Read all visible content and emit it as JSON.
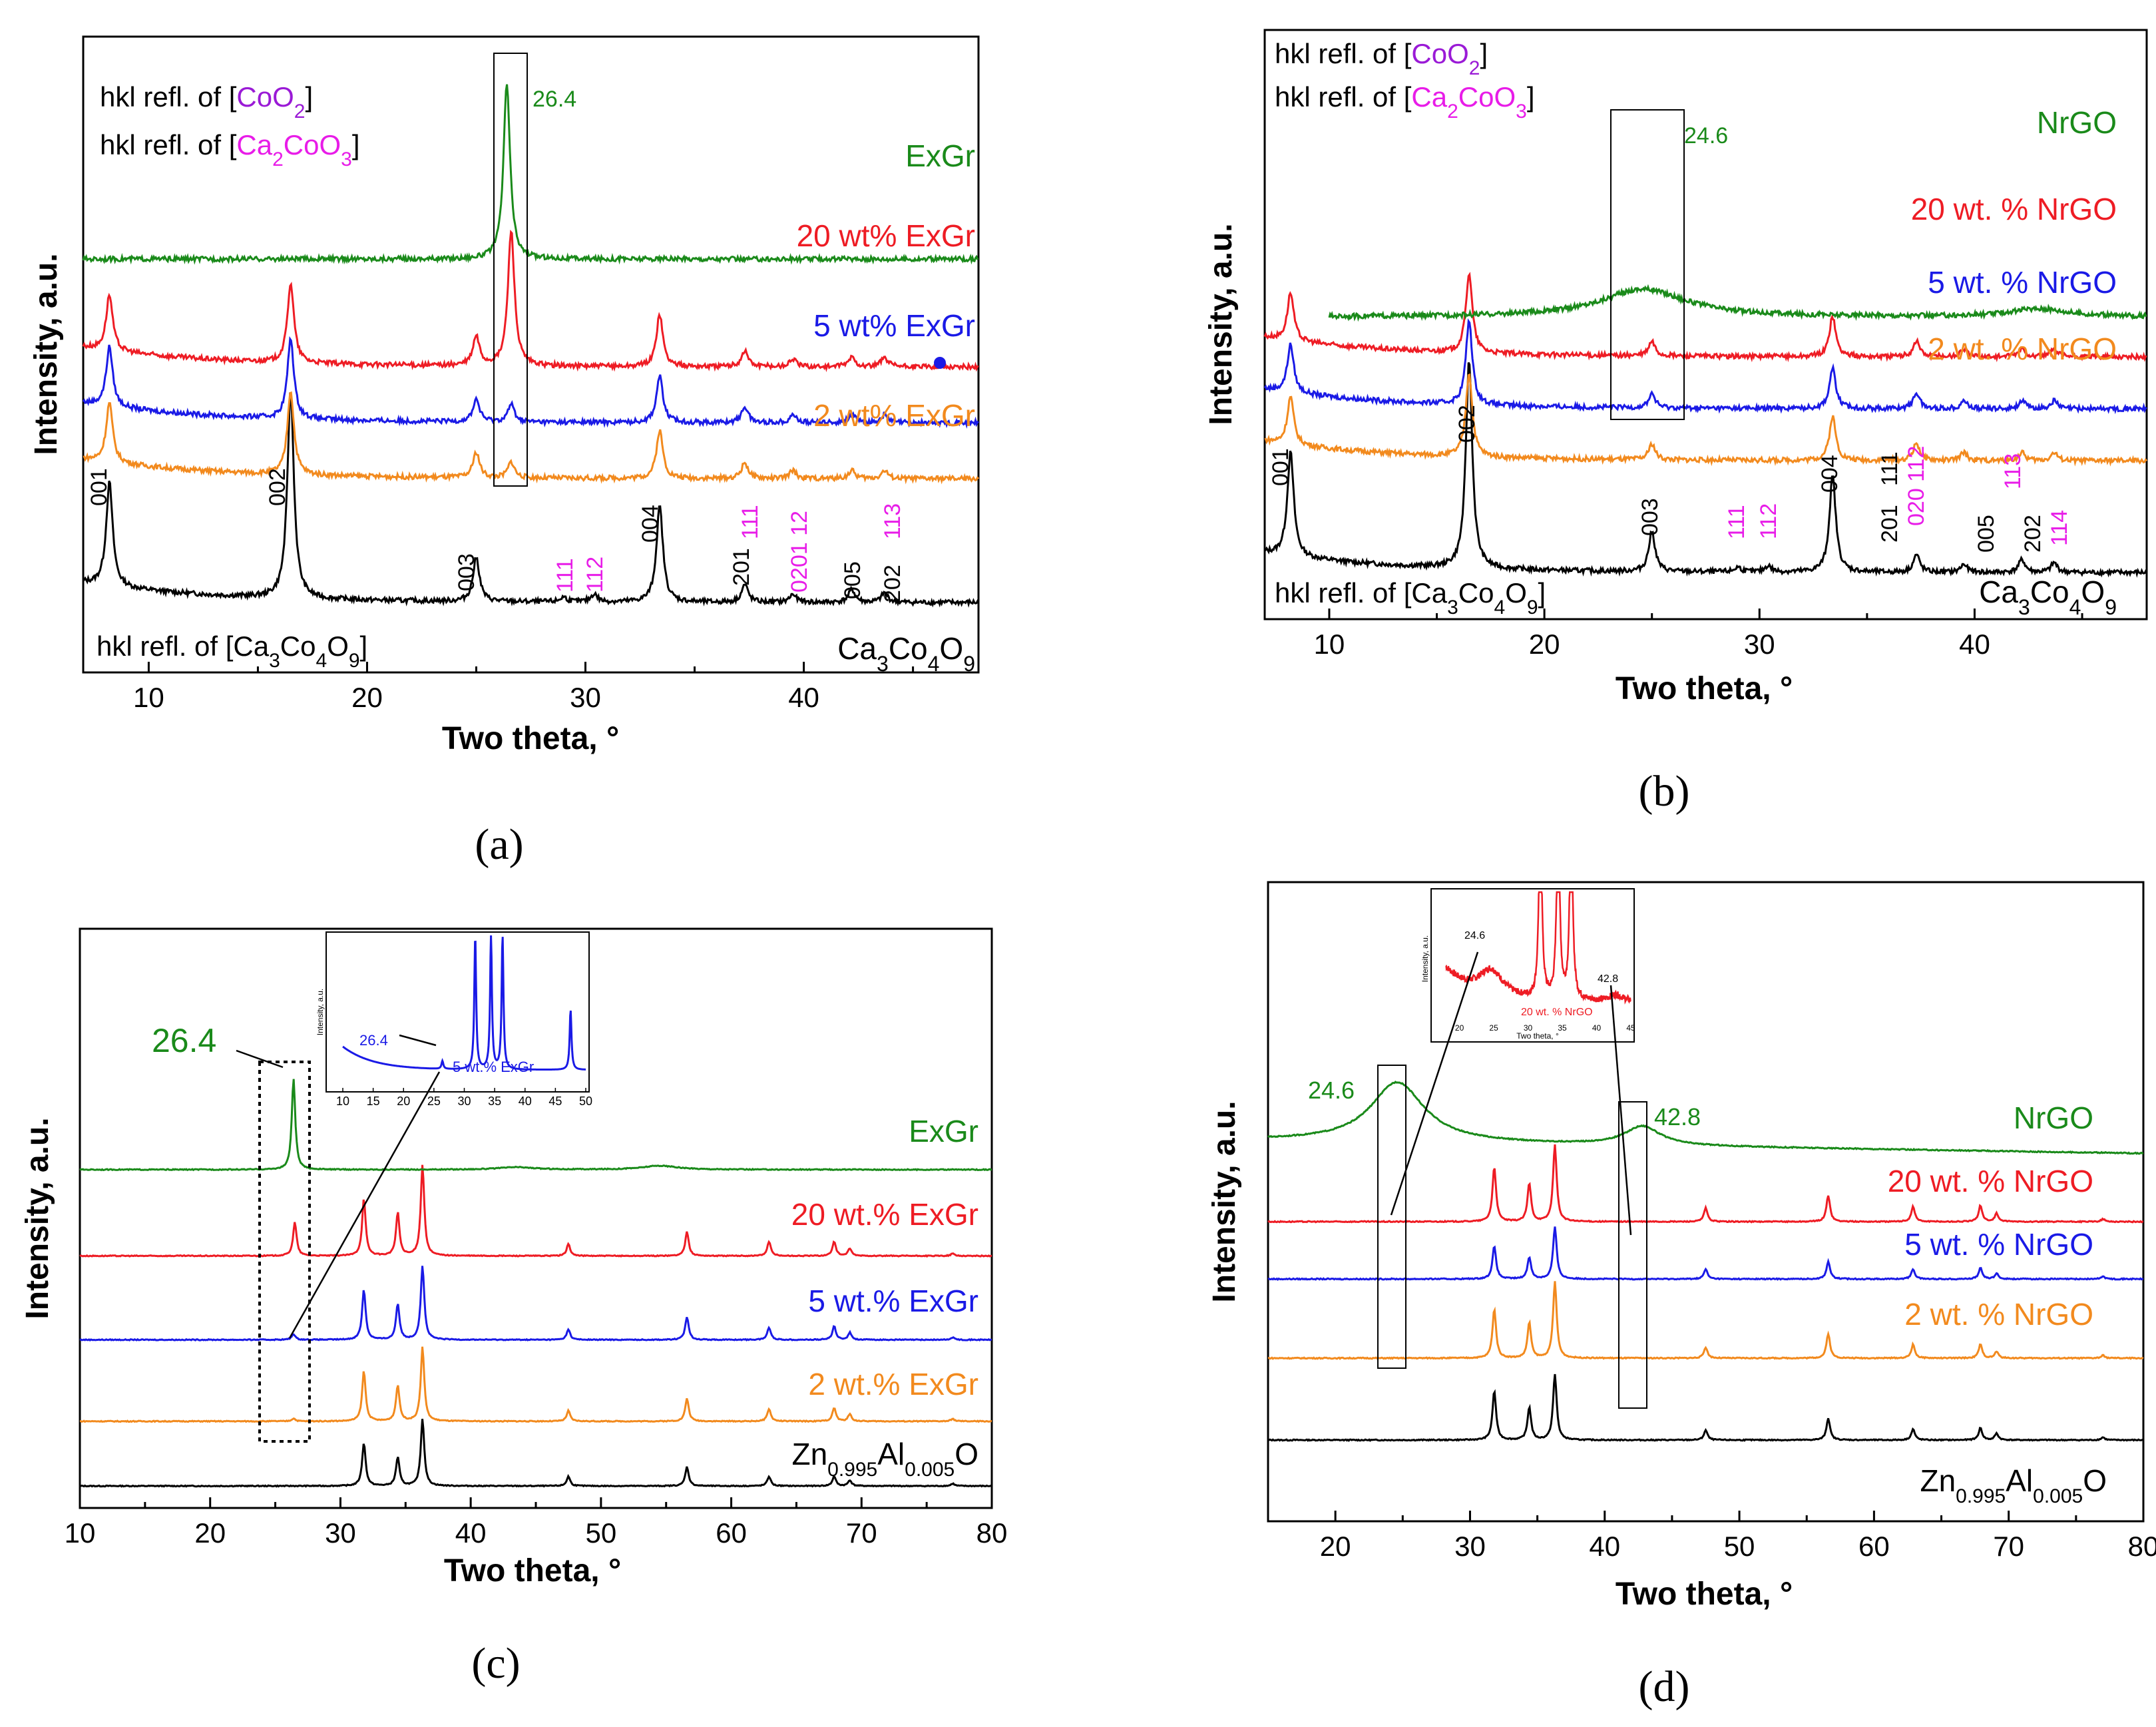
{
  "colors": {
    "black": "#000000",
    "orange": "#f28a1e",
    "blue": "#1a1ae6",
    "red": "#ee1c24",
    "green": "#1a8a1a",
    "purple": "#9a1ad6",
    "magenta": "#e81ce8"
  },
  "chart_data": [
    {
      "id": "a",
      "type": "line",
      "panel_label": "(a)",
      "xlabel": "Two theta, °",
      "ylabel": "Intensity, a.u.",
      "xlim": [
        7,
        48
      ],
      "xticks": [
        "10",
        "20",
        "30",
        "40"
      ],
      "series": [
        {
          "name": "Ca3Co4O9",
          "label": "Ca₃Co₄O₉",
          "color": "black",
          "base": 0.0,
          "slope": 0.25,
          "peaks": [
            [
              8.2,
              1.3
            ],
            [
              16.5,
              2.6
            ],
            [
              25.0,
              0.55
            ],
            [
              29.0,
              0.06
            ],
            [
              30.4,
              0.1
            ],
            [
              33.4,
              1.2
            ],
            [
              37.3,
              0.22
            ],
            [
              39.5,
              0.1
            ],
            [
              42.2,
              0.16
            ],
            [
              43.7,
              0.12
            ]
          ]
        },
        {
          "name": "2 wt% ExGr",
          "label": "2 wt% ExGr",
          "color": "orange",
          "base": 1.55,
          "slope": 0.25,
          "peaks": [
            [
              8.2,
              0.75
            ],
            [
              16.5,
              1.05
            ],
            [
              25.0,
              0.32
            ],
            [
              26.6,
              0.2
            ],
            [
              33.4,
              0.6
            ],
            [
              37.3,
              0.2
            ],
            [
              39.5,
              0.1
            ],
            [
              42.2,
              0.1
            ],
            [
              43.7,
              0.1
            ]
          ]
        },
        {
          "name": "5 wt% ExGr",
          "label": "5 wt% ExGr",
          "color": "blue",
          "base": 2.25,
          "slope": 0.25,
          "peaks": [
            [
              8.2,
              0.75
            ],
            [
              16.5,
              1.0
            ],
            [
              25.0,
              0.28
            ],
            [
              26.6,
              0.22
            ],
            [
              33.4,
              0.58
            ],
            [
              37.3,
              0.2
            ],
            [
              39.5,
              0.1
            ],
            [
              42.2,
              0.1
            ],
            [
              43.7,
              0.1
            ]
          ]
        },
        {
          "name": "20 wt% ExGr",
          "label": "20 wt% ExGr",
          "color": "red",
          "base": 2.95,
          "slope": 0.25,
          "peaks": [
            [
              8.2,
              0.7
            ],
            [
              16.5,
              1.0
            ],
            [
              25.0,
              0.36
            ],
            [
              26.6,
              1.7
            ],
            [
              33.4,
              0.65
            ],
            [
              37.3,
              0.2
            ],
            [
              39.5,
              0.1
            ],
            [
              42.2,
              0.12
            ],
            [
              43.7,
              0.12
            ]
          ]
        },
        {
          "name": "ExGr",
          "label": "ExGr",
          "color": "green",
          "base": 4.3,
          "slope": 0,
          "peaks": [
            [
              26.4,
              2.2
            ]
          ]
        }
      ],
      "peak_label": "26.4",
      "hkl_black": [
        "001",
        "002",
        "003",
        "004",
        "201",
        "005",
        "202"
      ],
      "hkl_magenta": [
        "111",
        "112",
        "111",
        "0201 12",
        "113"
      ],
      "note_ca": "hkl refl. of [Ca₃Co₄O₉]",
      "note_coo2": "hkl refl. of [CoO₂]",
      "note_ca2": "hkl refl. of [Ca₂CoO₃]"
    },
    {
      "id": "b",
      "type": "line",
      "panel_label": "(b)",
      "xlabel": "Two theta, °",
      "ylabel": "Intensity, a.u.",
      "xlim": [
        7,
        48
      ],
      "xticks": [
        "10",
        "20",
        "30",
        "40"
      ],
      "series": [
        {
          "name": "Ca3Co4O9",
          "label": "Ca₃Co₄O₉",
          "color": "black",
          "base": 0.0,
          "slope": 0.25,
          "peaks": [
            [
              8.2,
              1.3
            ],
            [
              16.5,
              2.6
            ],
            [
              25.0,
              0.5
            ],
            [
              29.0,
              0.06
            ],
            [
              30.4,
              0.08
            ],
            [
              33.4,
              1.2
            ],
            [
              37.3,
              0.22
            ],
            [
              39.5,
              0.1
            ],
            [
              42.2,
              0.16
            ],
            [
              43.7,
              0.12
            ]
          ]
        },
        {
          "name": "2 wt. % NrGO",
          "label": "2 wt. % NrGO",
          "color": "orange",
          "base": 1.4,
          "slope": 0.25,
          "peaks": [
            [
              8.2,
              0.6
            ],
            [
              16.5,
              1.05
            ],
            [
              25.0,
              0.2
            ],
            [
              33.4,
              0.55
            ],
            [
              37.3,
              0.22
            ],
            [
              39.5,
              0.1
            ],
            [
              42.2,
              0.1
            ],
            [
              43.7,
              0.1
            ]
          ]
        },
        {
          "name": "5 wt. % NrGO",
          "label": "5 wt. % NrGO",
          "color": "blue",
          "base": 2.05,
          "slope": 0.25,
          "peaks": [
            [
              8.2,
              0.6
            ],
            [
              16.5,
              1.05
            ],
            [
              25.0,
              0.18
            ],
            [
              33.4,
              0.5
            ],
            [
              37.3,
              0.2
            ],
            [
              39.5,
              0.1
            ],
            [
              42.2,
              0.1
            ],
            [
              43.7,
              0.1
            ]
          ]
        },
        {
          "name": "20 wt. % NrGO",
          "label": "20 wt. % NrGO",
          "color": "red",
          "base": 2.7,
          "slope": 0.25,
          "peaks": [
            [
              8.2,
              0.6
            ],
            [
              16.5,
              1.0
            ],
            [
              25.0,
              0.18
            ],
            [
              33.4,
              0.5
            ],
            [
              37.3,
              0.2
            ],
            [
              39.5,
              0.1
            ],
            [
              42.2,
              0.1
            ],
            [
              43.7,
              0.1
            ]
          ]
        },
        {
          "name": "NrGO",
          "label": "NrGO",
          "color": "green",
          "base": 3.2,
          "slope": 0,
          "peaks": [
            [
              24.6,
              0.35
            ],
            [
              43.0,
              0.1
            ]
          ]
        }
      ],
      "peak_label": "24.6",
      "hkl_black": [
        "001",
        "002",
        "003",
        "004",
        "201",
        "005",
        "202"
      ],
      "hkl_magenta": [
        "111",
        "112",
        "111",
        "020 112",
        "113",
        "114"
      ],
      "note_ca": "hkl refl. of [Ca₃Co₄O₉]",
      "note_coo2": "hkl refl. of [CoO₂]",
      "note_ca2": "hkl refl. of [Ca₂CoO₃]"
    },
    {
      "id": "c",
      "type": "line",
      "panel_label": "(c)",
      "xlabel": "Two theta, °",
      "ylabel": "Intensity, a.u.",
      "xlim": [
        10,
        80
      ],
      "xticks": [
        "10",
        "20",
        "30",
        "40",
        "50",
        "60",
        "70",
        "80"
      ],
      "series": [
        {
          "name": "Zn0.995Al0.005O",
          "label": "Zn₀.₉₉₅Al₀.₀₀₅O",
          "color": "black",
          "base": 0.0,
          "slope": 0,
          "peaks": [
            [
              31.8,
              0.9
            ],
            [
              34.4,
              0.6
            ],
            [
              36.3,
              1.4
            ],
            [
              47.5,
              0.2
            ],
            [
              56.6,
              0.4
            ],
            [
              62.9,
              0.2
            ],
            [
              67.9,
              0.2
            ],
            [
              69.1,
              0.12
            ],
            [
              77.0,
              0.05
            ]
          ]
        },
        {
          "name": "2 wt.% ExGr",
          "label": "2 wt.% ExGr",
          "color": "orange",
          "base": 1.35,
          "slope": 0,
          "peaks": [
            [
              26.4,
              0.06
            ],
            [
              31.8,
              1.05
            ],
            [
              34.4,
              0.75
            ],
            [
              36.3,
              1.55
            ],
            [
              47.5,
              0.22
            ],
            [
              56.6,
              0.48
            ],
            [
              62.9,
              0.26
            ],
            [
              67.9,
              0.28
            ],
            [
              69.1,
              0.15
            ],
            [
              77.0,
              0.05
            ]
          ]
        },
        {
          "name": "5 wt.% ExGr",
          "label": "5 wt.% ExGr",
          "color": "blue",
          "base": 3.05,
          "slope": 0,
          "peaks": [
            [
              26.4,
              0.12
            ],
            [
              31.8,
              1.05
            ],
            [
              34.4,
              0.75
            ],
            [
              36.3,
              1.55
            ],
            [
              47.5,
              0.22
            ],
            [
              56.6,
              0.48
            ],
            [
              62.9,
              0.26
            ],
            [
              67.9,
              0.28
            ],
            [
              69.1,
              0.15
            ],
            [
              77.0,
              0.05
            ]
          ]
        },
        {
          "name": "20 wt.% ExGr",
          "label": "20 wt.% ExGr",
          "color": "red",
          "base": 4.8,
          "slope": 0,
          "peaks": [
            [
              26.5,
              0.7
            ],
            [
              31.8,
              1.2
            ],
            [
              34.4,
              0.9
            ],
            [
              36.3,
              1.9
            ],
            [
              47.5,
              0.25
            ],
            [
              56.6,
              0.5
            ],
            [
              62.9,
              0.3
            ],
            [
              67.9,
              0.3
            ],
            [
              69.1,
              0.15
            ],
            [
              77.0,
              0.05
            ]
          ]
        },
        {
          "name": "ExGr",
          "label": "ExGr",
          "color": "green",
          "base": 6.6,
          "slope": 0,
          "peaks": [
            [
              26.4,
              1.9
            ],
            [
              43.5,
              0.05
            ],
            [
              54.5,
              0.08
            ]
          ]
        }
      ],
      "peak_label": "26.4",
      "inset": {
        "label": "5 wt.% ExGr",
        "peak_label": "26.4",
        "ylabel": "Intensity, a.u.",
        "xticks": [
          "10",
          "15",
          "20",
          "25",
          "30",
          "35",
          "40",
          "45",
          "50"
        ]
      }
    },
    {
      "id": "d",
      "type": "line",
      "panel_label": "(d)",
      "xlabel": "Two theta, °",
      "ylabel": "Intensity, a.u.",
      "xlim": [
        15,
        80
      ],
      "xticks": [
        "20",
        "30",
        "40",
        "50",
        "60",
        "70",
        "80"
      ],
      "series": [
        {
          "name": "Zn0.995Al0.005O",
          "label": "Zn₀.₉₉₅Al₀.₀₀₅O",
          "color": "black",
          "base": 0.0,
          "slope": 0,
          "peaks": [
            [
              31.8,
              0.9
            ],
            [
              34.4,
              0.6
            ],
            [
              36.3,
              1.2
            ],
            [
              47.5,
              0.18
            ],
            [
              56.6,
              0.4
            ],
            [
              62.9,
              0.2
            ],
            [
              67.9,
              0.22
            ],
            [
              69.1,
              0.12
            ],
            [
              77.0,
              0.05
            ]
          ]
        },
        {
          "name": "2 wt. % NrGO",
          "label": "2 wt. % NrGO",
          "color": "orange",
          "base": 1.5,
          "slope": 0,
          "peaks": [
            [
              31.8,
              0.9
            ],
            [
              34.4,
              0.65
            ],
            [
              36.3,
              1.4
            ],
            [
              47.5,
              0.2
            ],
            [
              56.6,
              0.45
            ],
            [
              62.9,
              0.25
            ],
            [
              67.9,
              0.25
            ],
            [
              69.1,
              0.12
            ],
            [
              77.0,
              0.05
            ]
          ]
        },
        {
          "name": "5 wt. % NrGO",
          "label": "5 wt. % NrGO",
          "color": "blue",
          "base": 2.95,
          "slope": 0,
          "peaks": [
            [
              31.8,
              0.6
            ],
            [
              34.4,
              0.4
            ],
            [
              36.3,
              0.95
            ],
            [
              47.5,
              0.18
            ],
            [
              56.6,
              0.32
            ],
            [
              62.9,
              0.18
            ],
            [
              67.9,
              0.2
            ],
            [
              69.1,
              0.1
            ],
            [
              77.0,
              0.05
            ]
          ]
        },
        {
          "name": "20 wt. % NrGO",
          "label": "20 wt. % NrGO",
          "color": "red",
          "base": 4.0,
          "slope": 0,
          "peaks": [
            [
              31.8,
              1.0
            ],
            [
              34.4,
              0.7
            ],
            [
              36.3,
              1.4
            ],
            [
              47.5,
              0.25
            ],
            [
              56.6,
              0.48
            ],
            [
              62.9,
              0.28
            ],
            [
              67.9,
              0.3
            ],
            [
              69.1,
              0.15
            ],
            [
              77.0,
              0.05
            ]
          ]
        },
        {
          "name": "NrGO",
          "label": "NrGO",
          "color": "green",
          "base": 5.25,
          "slope": 0.08,
          "peaks": [
            [
              24.6,
              1.1
            ],
            [
              42.8,
              0.35
            ]
          ]
        }
      ],
      "peak_label_1": "24.6",
      "peak_label_2": "42.8",
      "inset": {
        "label": "20 wt. % NrGO",
        "peak_label_1": "24.6",
        "peak_label_2": "42.8",
        "ylabel": "Intensity, a.u.",
        "xlabel": "Two theta, °",
        "xticks": [
          "20",
          "25",
          "30",
          "35",
          "40",
          "45"
        ]
      }
    }
  ]
}
